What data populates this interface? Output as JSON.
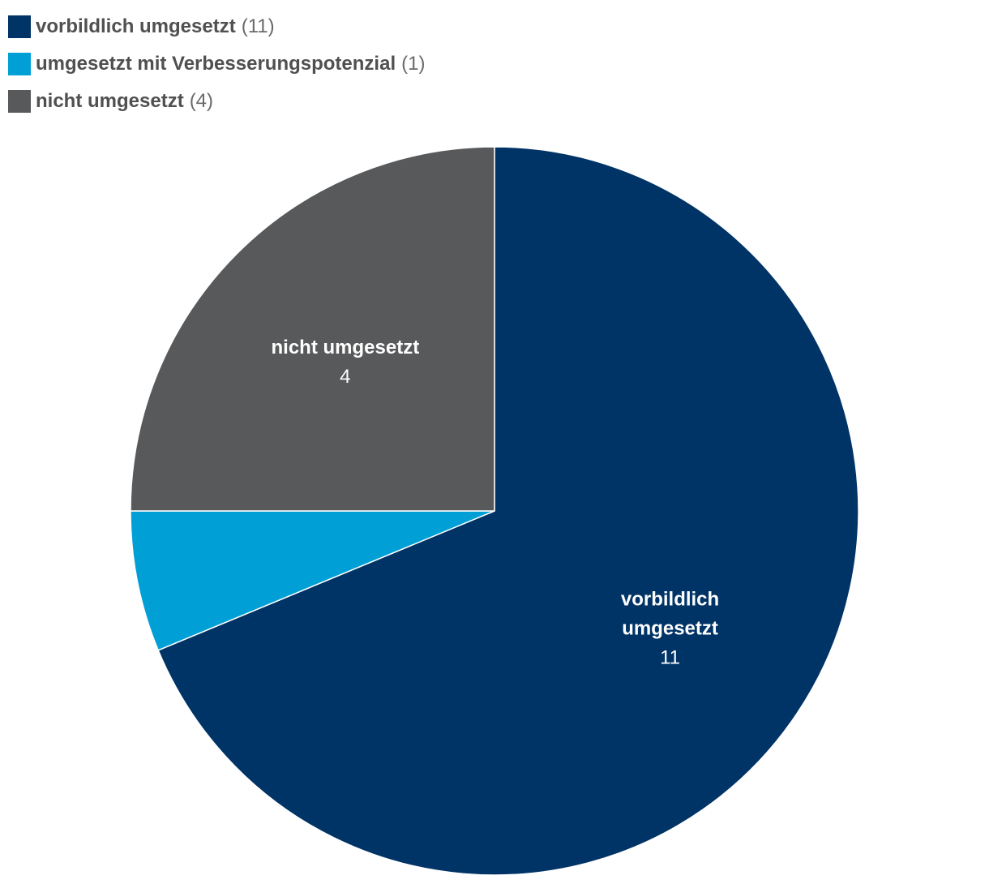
{
  "chart_data": {
    "type": "pie",
    "title": "",
    "legend_position": "top-left",
    "slices": [
      {
        "name": "vorbildlich umgesetzt",
        "value": 11,
        "legend_count": "(11)",
        "label_lines": [
          "vorbildlich",
          "umgesetzt"
        ],
        "value_label": "11",
        "color": "#003366"
      },
      {
        "name": "umgesetzt mit Verbesserungspotenzial",
        "value": 1,
        "legend_count": "(1)",
        "label_lines": [],
        "value_label": "",
        "color": "#009fd6"
      },
      {
        "name": "nicht umgesetzt",
        "value": 4,
        "legend_count": "(4)",
        "label_lines": [
          "nicht umgesetzt"
        ],
        "value_label": "4",
        "color": "#58595b"
      }
    ]
  }
}
